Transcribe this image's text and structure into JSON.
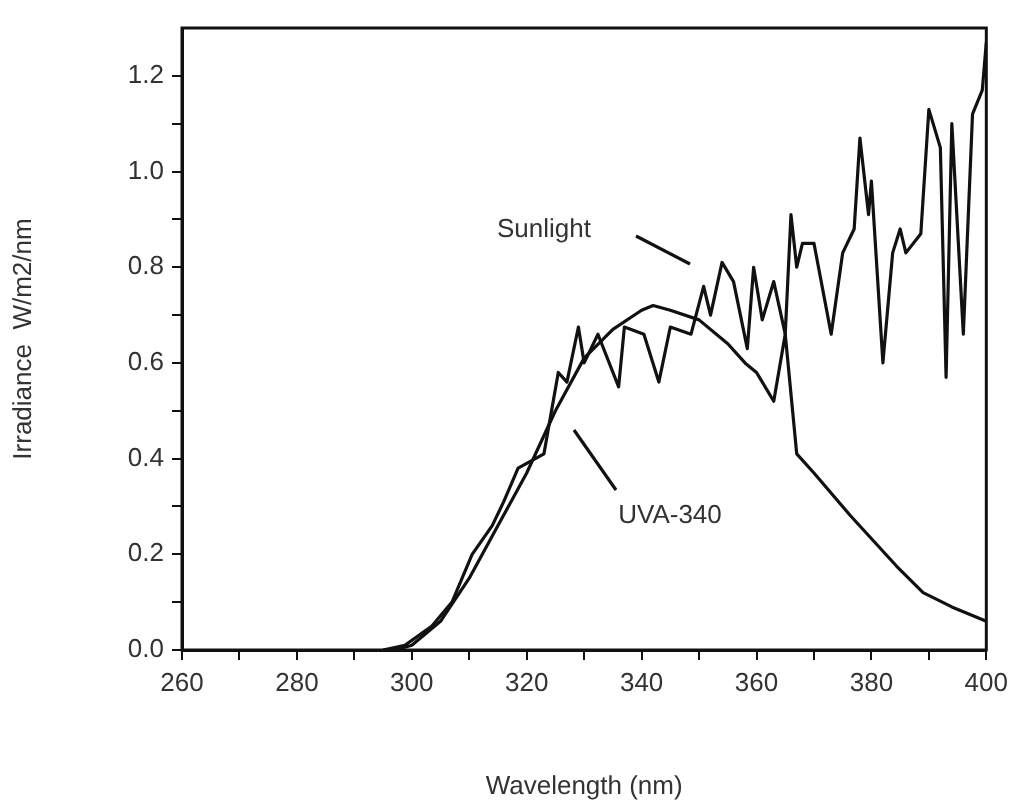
{
  "chart_data": {
    "type": "line",
    "xlabel": "Wavelength (nm)",
    "ylabel": "Irradiance  W/m2/nm",
    "xlim": [
      260,
      400
    ],
    "ylim": [
      0,
      1.3
    ],
    "xticks": [
      260,
      {
        "value": 270,
        "label": null
      },
      280,
      {
        "value": 290,
        "label": null
      },
      300,
      {
        "value": 310,
        "label": null
      },
      320,
      {
        "value": 330,
        "label": null
      },
      340,
      {
        "value": 350,
        "label": null
      },
      360,
      {
        "value": 370,
        "label": null
      },
      380,
      {
        "value": 390,
        "label": null
      },
      400
    ],
    "yticks": [
      {
        "value": 0,
        "label": "0.0"
      },
      {
        "value": 0.1,
        "label": null
      },
      0.2,
      {
        "value": 0.3,
        "label": null
      },
      0.4,
      {
        "value": 0.5,
        "label": null
      },
      0.6,
      {
        "value": 0.7,
        "label": null
      },
      0.8,
      {
        "value": 0.9,
        "label": null
      },
      {
        "value": 1,
        "label": "1.0"
      },
      {
        "value": 1.1,
        "label": null
      },
      1.2
    ],
    "marker": "none",
    "legend": false,
    "series": [
      {
        "color": "#111111",
        "x": [
          295,
          298.8,
          303.5,
          307,
          310.5,
          314,
          316,
          318.5,
          323,
          325.5,
          327,
          329,
          330,
          332.4,
          336,
          337,
          340.4,
          343,
          345,
          348.6,
          350.8,
          352,
          354,
          356,
          358.4,
          359.5,
          361,
          363,
          365,
          366,
          367,
          368,
          370,
          373,
          375,
          377,
          378,
          379.5,
          380,
          382,
          383.7,
          385,
          386,
          388.6,
          390,
          392,
          393,
          394,
          396,
          397.6,
          399.3,
          400
        ],
        "values": [
          0,
          0.01,
          0.05,
          0.1,
          0.2,
          0.26,
          0.31,
          0.38,
          0.41,
          0.58,
          0.56,
          0.675,
          0.6,
          0.66,
          0.55,
          0.675,
          0.66,
          0.56,
          0.675,
          0.66,
          0.76,
          0.7,
          0.81,
          0.77,
          0.63,
          0.8,
          0.69,
          0.77,
          0.66,
          0.91,
          0.8,
          0.85,
          0.85,
          0.66,
          0.83,
          0.88,
          1.07,
          0.91,
          0.98,
          0.6,
          0.83,
          0.88,
          0.83,
          0.87,
          1.13,
          1.05,
          0.57,
          1.1,
          0.66,
          1.12,
          1.17,
          1.27
        ]
      },
      {
        "color": "#111111",
        "x": [
          297,
          300,
          305,
          310,
          315,
          320,
          325,
          330,
          335,
          340,
          342,
          345,
          350,
          355,
          358,
          360,
          363,
          365,
          367,
          370,
          376.4,
          384.4,
          389,
          394,
          398,
          400
        ],
        "values": [
          0,
          0.01,
          0.06,
          0.15,
          0.26,
          0.37,
          0.5,
          0.61,
          0.67,
          0.71,
          0.72,
          0.71,
          0.69,
          0.64,
          0.6,
          0.58,
          0.52,
          0.66,
          0.41,
          0.37,
          0.28,
          0.175,
          0.12,
          0.09,
          0.07,
          0.06
        ]
      }
    ],
    "annotations": [
      "Sunlight",
      "UVA-340"
    ]
  }
}
